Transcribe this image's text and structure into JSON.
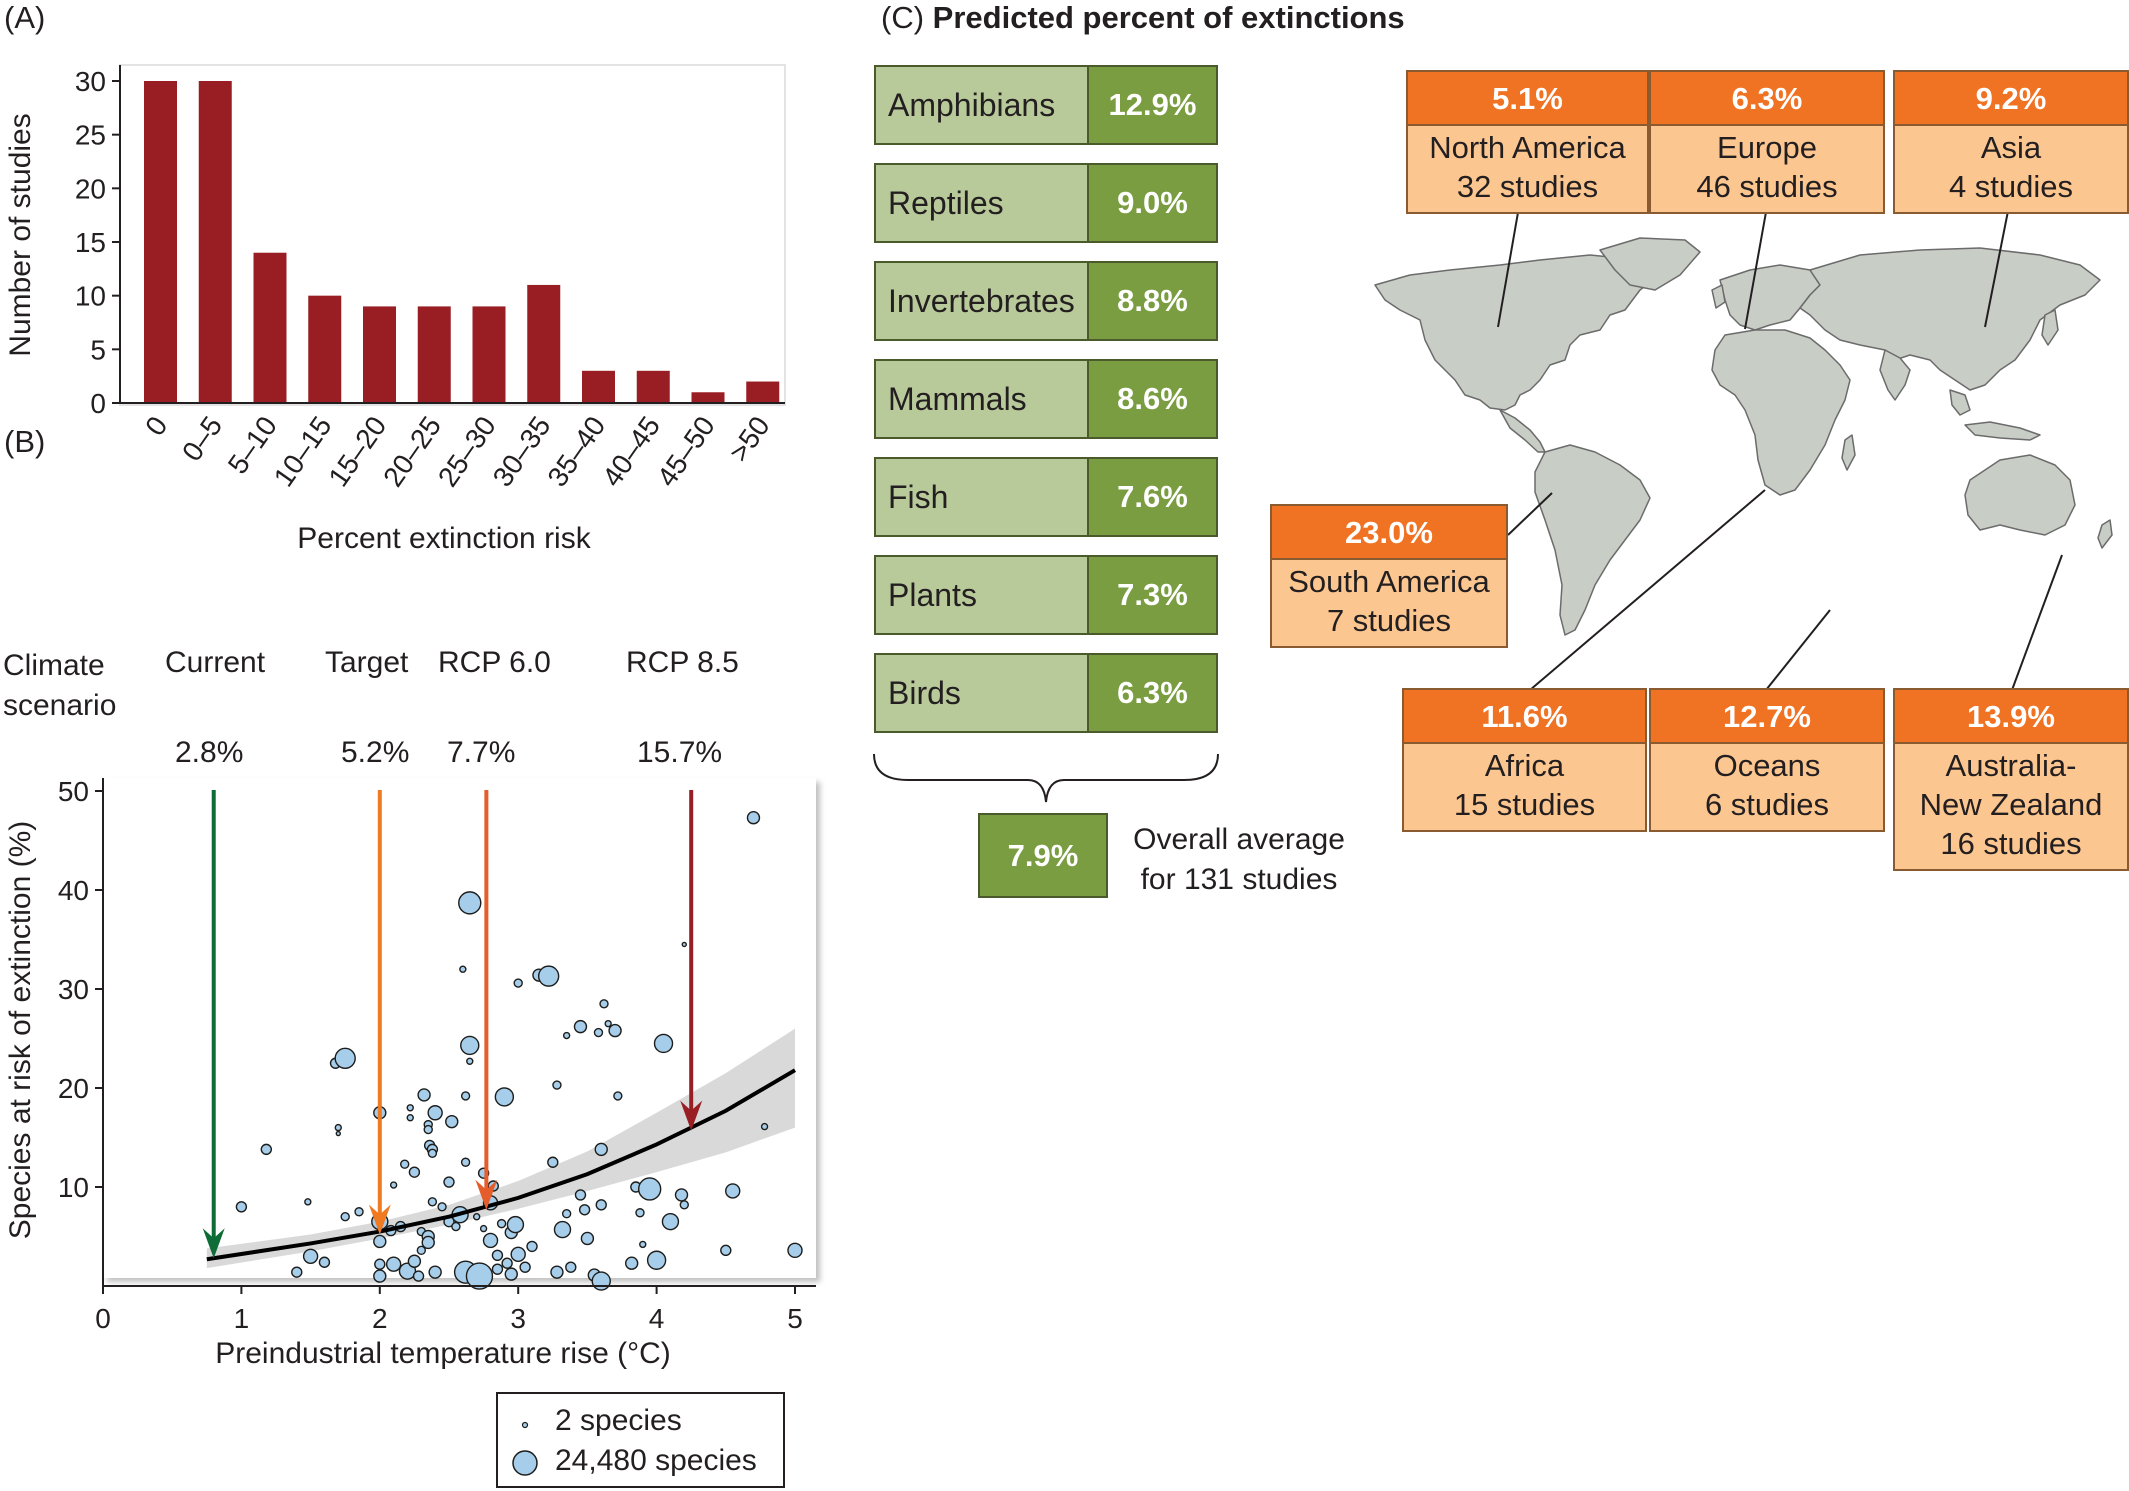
{
  "panel_labels": {
    "a": "(A)",
    "b": "(B)",
    "c": "(C)"
  },
  "chart_data": [
    {
      "type": "bar",
      "panel": "(A)",
      "xlabel": "Percent extinction risk",
      "ylabel": "Number of studies",
      "categories": [
        "0",
        "0–5",
        "5–10",
        "10–15",
        "15–20",
        "20–25",
        "25–30",
        "30–35",
        "35–40",
        "40–45",
        "45–50",
        ">50"
      ],
      "values": [
        30,
        30,
        14,
        10,
        9,
        9,
        9,
        11,
        3,
        3,
        1,
        2
      ],
      "ylim": [
        0,
        30
      ],
      "yticks": [
        0,
        5,
        10,
        15,
        20,
        25,
        30
      ],
      "color": "#981e24",
      "grid": false
    },
    {
      "type": "scatter",
      "panel": "(B)",
      "xlabel": "Preindustrial temperature rise (°C)",
      "ylabel": "Species at risk of extinction (%)",
      "xlim": [
        0,
        5
      ],
      "ylim": [
        0,
        52
      ],
      "xticks": [
        0,
        1,
        2,
        3,
        4,
        5
      ],
      "yticks": [
        10,
        20,
        30,
        40,
        50
      ],
      "point_color": "#a6cdea",
      "fit_curve": {
        "x": [
          0.75,
          1.5,
          2.0,
          2.5,
          3.0,
          3.5,
          4.0,
          4.5,
          5.0
        ],
        "y": [
          2.7,
          4.3,
          5.5,
          7.0,
          8.9,
          11.3,
          14.3,
          17.7,
          21.8
        ]
      },
      "confidence_band": {
        "x": [
          0.75,
          1.5,
          2.0,
          2.5,
          3.0,
          3.5,
          4.0,
          4.5,
          5.0
        ],
        "lower": [
          1.8,
          3.5,
          4.8,
          6.2,
          7.8,
          9.6,
          11.5,
          13.5,
          16.0
        ],
        "upper": [
          3.8,
          5.2,
          6.5,
          8.2,
          10.6,
          13.6,
          17.5,
          21.5,
          26.0
        ]
      },
      "points": [
        {
          "x": 1.0,
          "y": 8,
          "s": 5
        },
        {
          "x": 1.18,
          "y": 13.8,
          "s": 5
        },
        {
          "x": 1.4,
          "y": 1.4,
          "s": 5
        },
        {
          "x": 1.48,
          "y": 8.5,
          "s": 3
        },
        {
          "x": 1.5,
          "y": 3,
          "s": 7
        },
        {
          "x": 1.6,
          "y": 2.4,
          "s": 5
        },
        {
          "x": 1.68,
          "y": 22.5,
          "s": 5
        },
        {
          "x": 1.75,
          "y": 23,
          "s": 10
        },
        {
          "x": 1.7,
          "y": 16,
          "s": 3
        },
        {
          "x": 1.7,
          "y": 15.4,
          "s": 2
        },
        {
          "x": 1.75,
          "y": 7,
          "s": 4
        },
        {
          "x": 1.85,
          "y": 7.5,
          "s": 4
        },
        {
          "x": 2.0,
          "y": 17.5,
          "s": 6
        },
        {
          "x": 2.0,
          "y": 6.5,
          "s": 8
        },
        {
          "x": 2.0,
          "y": 4.5,
          "s": 6
        },
        {
          "x": 2.0,
          "y": 1,
          "s": 6
        },
        {
          "x": 2.0,
          "y": 2.2,
          "s": 5
        },
        {
          "x": 2.08,
          "y": 5.6,
          "s": 5
        },
        {
          "x": 2.1,
          "y": 2.2,
          "s": 7
        },
        {
          "x": 2.1,
          "y": 10.2,
          "s": 3
        },
        {
          "x": 2.15,
          "y": 6,
          "s": 5
        },
        {
          "x": 2.18,
          "y": 12.3,
          "s": 4
        },
        {
          "x": 2.2,
          "y": 1.5,
          "s": 8
        },
        {
          "x": 2.22,
          "y": 18,
          "s": 3
        },
        {
          "x": 2.22,
          "y": 17,
          "s": 3
        },
        {
          "x": 2.25,
          "y": 11.5,
          "s": 5
        },
        {
          "x": 2.25,
          "y": 2.5,
          "s": 6
        },
        {
          "x": 2.28,
          "y": 1,
          "s": 5
        },
        {
          "x": 2.3,
          "y": 5.5,
          "s": 4
        },
        {
          "x": 2.3,
          "y": 3.6,
          "s": 4
        },
        {
          "x": 2.32,
          "y": 19.3,
          "s": 6
        },
        {
          "x": 2.35,
          "y": 16.3,
          "s": 4
        },
        {
          "x": 2.35,
          "y": 15.8,
          "s": 4
        },
        {
          "x": 2.35,
          "y": 5,
          "s": 6
        },
        {
          "x": 2.35,
          "y": 4.4,
          "s": 6
        },
        {
          "x": 2.36,
          "y": 14.2,
          "s": 5
        },
        {
          "x": 2.38,
          "y": 13.8,
          "s": 5
        },
        {
          "x": 2.38,
          "y": 13.4,
          "s": 4
        },
        {
          "x": 2.38,
          "y": 8.5,
          "s": 4
        },
        {
          "x": 2.4,
          "y": 17.5,
          "s": 7
        },
        {
          "x": 2.4,
          "y": 1.4,
          "s": 6
        },
        {
          "x": 2.45,
          "y": 8,
          "s": 4
        },
        {
          "x": 2.5,
          "y": 6.5,
          "s": 5
        },
        {
          "x": 2.5,
          "y": 10.5,
          "s": 5
        },
        {
          "x": 2.52,
          "y": 16.6,
          "s": 6
        },
        {
          "x": 2.55,
          "y": 6,
          "s": 4
        },
        {
          "x": 2.58,
          "y": 7.2,
          "s": 8
        },
        {
          "x": 2.6,
          "y": 32,
          "s": 3
        },
        {
          "x": 2.62,
          "y": 1.4,
          "s": 11
        },
        {
          "x": 2.62,
          "y": 19.2,
          "s": 4
        },
        {
          "x": 2.62,
          "y": 12.5,
          "s": 4
        },
        {
          "x": 2.65,
          "y": 38.7,
          "s": 11
        },
        {
          "x": 2.65,
          "y": 24.3,
          "s": 9
        },
        {
          "x": 2.65,
          "y": 22.7,
          "s": 3
        },
        {
          "x": 2.7,
          "y": 7,
          "s": 3
        },
        {
          "x": 2.72,
          "y": 1,
          "s": 13
        },
        {
          "x": 2.75,
          "y": 11.4,
          "s": 5
        },
        {
          "x": 2.75,
          "y": 5.8,
          "s": 3
        },
        {
          "x": 2.8,
          "y": 8.4,
          "s": 7
        },
        {
          "x": 2.8,
          "y": 4.6,
          "s": 7
        },
        {
          "x": 2.82,
          "y": 10.1,
          "s": 5
        },
        {
          "x": 2.85,
          "y": 3.1,
          "s": 5
        },
        {
          "x": 2.85,
          "y": 1.7,
          "s": 5
        },
        {
          "x": 2.88,
          "y": 6.3,
          "s": 4
        },
        {
          "x": 2.9,
          "y": 19.1,
          "s": 9
        },
        {
          "x": 2.92,
          "y": 2.3,
          "s": 5
        },
        {
          "x": 2.95,
          "y": 5.4,
          "s": 6
        },
        {
          "x": 2.95,
          "y": 1.2,
          "s": 6
        },
        {
          "x": 2.98,
          "y": 6.2,
          "s": 8
        },
        {
          "x": 3.0,
          "y": 30.6,
          "s": 4
        },
        {
          "x": 3.0,
          "y": 3.2,
          "s": 7
        },
        {
          "x": 3.05,
          "y": 1.9,
          "s": 5
        },
        {
          "x": 3.1,
          "y": 4,
          "s": 5
        },
        {
          "x": 3.15,
          "y": 31.4,
          "s": 6
        },
        {
          "x": 3.22,
          "y": 31.3,
          "s": 10
        },
        {
          "x": 3.25,
          "y": 12.5,
          "s": 5
        },
        {
          "x": 3.28,
          "y": 20.3,
          "s": 4
        },
        {
          "x": 3.28,
          "y": 1.4,
          "s": 6
        },
        {
          "x": 3.32,
          "y": 5.7,
          "s": 8
        },
        {
          "x": 3.35,
          "y": 7.3,
          "s": 4
        },
        {
          "x": 3.35,
          "y": 25.3,
          "s": 3
        },
        {
          "x": 3.38,
          "y": 1.9,
          "s": 5
        },
        {
          "x": 3.45,
          "y": 9.2,
          "s": 5
        },
        {
          "x": 3.45,
          "y": 26.2,
          "s": 6
        },
        {
          "x": 3.48,
          "y": 7.7,
          "s": 5
        },
        {
          "x": 3.5,
          "y": 4.8,
          "s": 6
        },
        {
          "x": 3.55,
          "y": 1.1,
          "s": 6
        },
        {
          "x": 3.58,
          "y": 25.6,
          "s": 4
        },
        {
          "x": 3.6,
          "y": 8.2,
          "s": 5
        },
        {
          "x": 3.6,
          "y": 13.8,
          "s": 6
        },
        {
          "x": 3.6,
          "y": 0.5,
          "s": 9
        },
        {
          "x": 3.62,
          "y": 28.5,
          "s": 4
        },
        {
          "x": 3.65,
          "y": 26.5,
          "s": 3
        },
        {
          "x": 3.7,
          "y": 25.8,
          "s": 6
        },
        {
          "x": 3.72,
          "y": 19.2,
          "s": 4
        },
        {
          "x": 3.82,
          "y": 2.3,
          "s": 6
        },
        {
          "x": 3.85,
          "y": 10,
          "s": 5
        },
        {
          "x": 3.88,
          "y": 7.4,
          "s": 4
        },
        {
          "x": 3.9,
          "y": 4.2,
          "s": 3
        },
        {
          "x": 3.95,
          "y": 9.8,
          "s": 11
        },
        {
          "x": 4.0,
          "y": 2.6,
          "s": 9
        },
        {
          "x": 4.05,
          "y": 24.5,
          "s": 9
        },
        {
          "x": 4.1,
          "y": 6.5,
          "s": 8
        },
        {
          "x": 4.18,
          "y": 9.2,
          "s": 6
        },
        {
          "x": 4.2,
          "y": 8.2,
          "s": 4
        },
        {
          "x": 4.2,
          "y": 34.5,
          "s": 2
        },
        {
          "x": 4.5,
          "y": 3.6,
          "s": 5
        },
        {
          "x": 4.55,
          "y": 9.6,
          "s": 7
        },
        {
          "x": 4.7,
          "y": 47.3,
          "s": 6
        },
        {
          "x": 4.78,
          "y": 16.1,
          "s": 3
        },
        {
          "x": 5.0,
          "y": 3.6,
          "s": 7
        }
      ],
      "scenarios": {
        "header": [
          "Climate",
          "scenario"
        ],
        "items": [
          {
            "name": "Current",
            "value": "2.8%",
            "x": 0.8,
            "color": "#0e6c37"
          },
          {
            "name": "Target",
            "value": "5.2%",
            "x": 2.0,
            "color": "#f07a22"
          },
          {
            "name": "RCP 6.0",
            "value": "7.7%",
            "x": 2.77,
            "color": "#e45d2b"
          },
          {
            "name": "RCP 8.5",
            "value": "15.7%",
            "x": 4.25,
            "color": "#981e24"
          }
        ]
      },
      "legend": [
        {
          "label": "2 species",
          "size": "small"
        },
        {
          "label": "24,480 species",
          "size": "large"
        }
      ]
    },
    {
      "type": "table",
      "panel": "(C)",
      "title": "Predicted percent of extinctions",
      "taxa": [
        {
          "name": "Amphibians",
          "value": "12.9%"
        },
        {
          "name": "Reptiles",
          "value": "9.0%"
        },
        {
          "name": "Invertebrates",
          "value": "8.8%"
        },
        {
          "name": "Mammals",
          "value": "8.6%"
        },
        {
          "name": "Fish",
          "value": "7.6%"
        },
        {
          "name": "Plants",
          "value": "7.3%"
        },
        {
          "name": "Birds",
          "value": "6.3%"
        }
      ],
      "overall": {
        "value": "7.9%",
        "label_line1": "Overall average",
        "label_line2": "for 131 studies"
      },
      "regions": {
        "north_america": {
          "pct": "5.1%",
          "name": "North America",
          "studies": "32 studies"
        },
        "europe": {
          "pct": "6.3%",
          "name": "Europe",
          "studies": "46 studies"
        },
        "asia": {
          "pct": "9.2%",
          "name": "Asia",
          "studies": "4 studies"
        },
        "south_america": {
          "pct": "23.0%",
          "name": "South America",
          "studies": "7 studies"
        },
        "africa": {
          "pct": "11.6%",
          "name": "Africa",
          "studies": "15 studies"
        },
        "oceans": {
          "pct": "12.7%",
          "name": "Oceans",
          "studies": "6 studies"
        },
        "australia": {
          "pct": "13.9%",
          "name": "Australia-",
          "name2": "New Zealand",
          "studies": "16 studies"
        }
      }
    }
  ]
}
